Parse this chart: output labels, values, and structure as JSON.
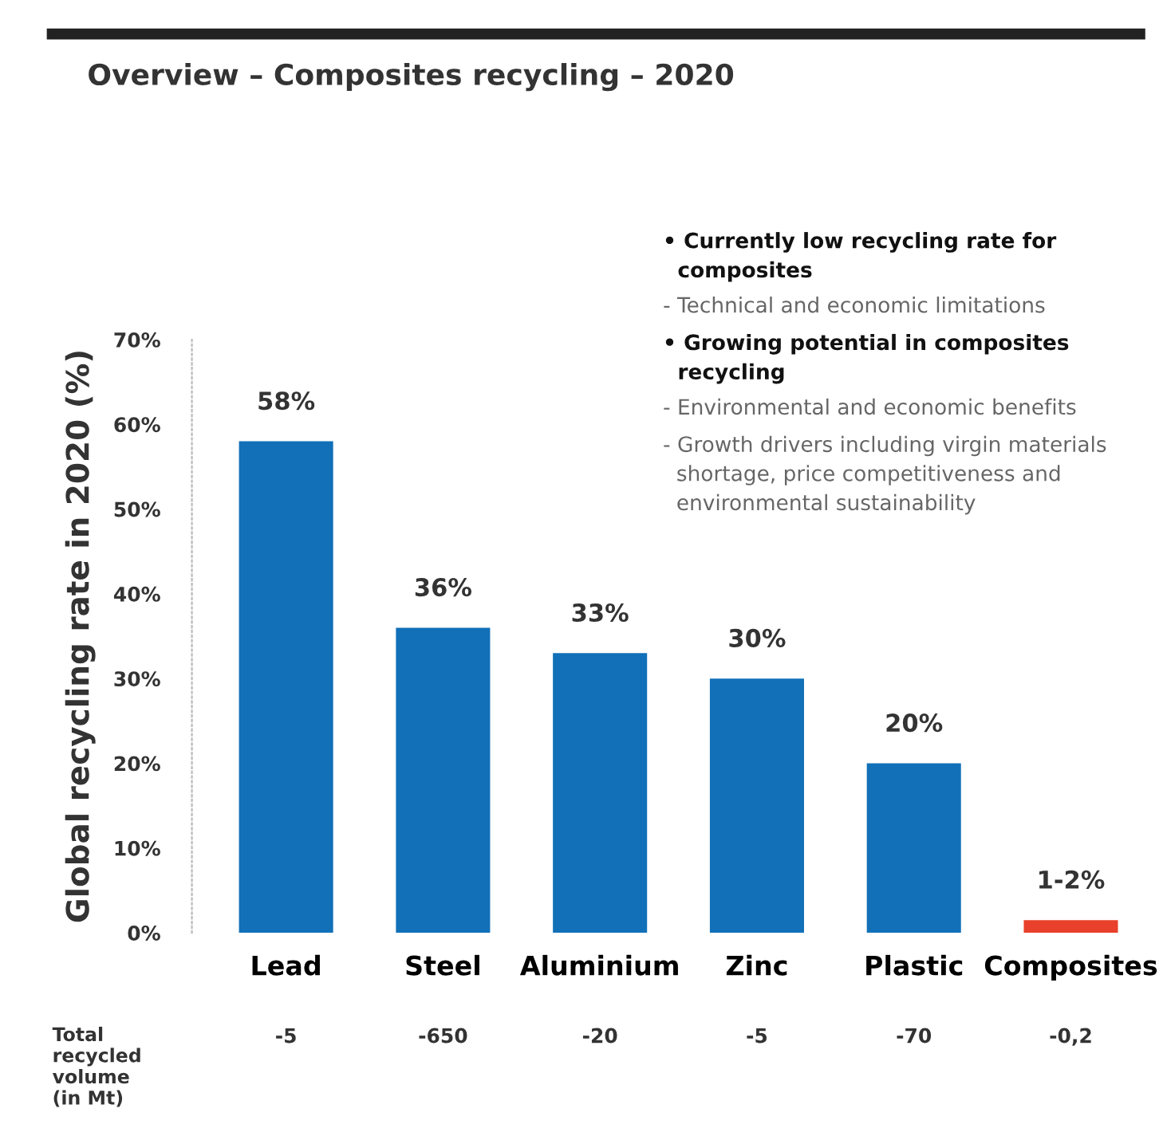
{
  "chart_data": {
    "type": "bar",
    "title": "Overview – Composites recycling – 2020",
    "ylabel": "Global recycling rate in 2020 (%)",
    "categories": [
      "Lead",
      "Steel",
      "Aluminium",
      "Zinc",
      "Plastic",
      "Composites"
    ],
    "values": [
      58,
      36,
      33,
      30,
      20,
      1.5
    ],
    "colors": [
      "#1170b8",
      "#1170b8",
      "#1170b8",
      "#1170b8",
      "#1170b8",
      "#e8402a"
    ],
    "value_labels": [
      "58%",
      "36%",
      "33%",
      "30%",
      "20%",
      "1-2%"
    ],
    "ylim": [
      0,
      70
    ],
    "yticks": [
      {
        "value": 0,
        "label": "0%"
      },
      {
        "value": 10,
        "label": "10%"
      },
      {
        "value": 20,
        "label": "20%"
      },
      {
        "value": 30,
        "label": "30%"
      },
      {
        "value": 40,
        "label": "40%"
      },
      {
        "value": 50,
        "label": "50%"
      },
      {
        "value": 60,
        "label": "60%"
      },
      {
        "value": 70,
        "label": "70%"
      }
    ],
    "grid": false,
    "legend": false,
    "annotations": [
      "• Currently low recycling rate for\n  composites",
      "- Technical and economic limitations",
      "• Growing potential in composites\n  recycling",
      "- Environmental and economic benefits",
      "- Growth drivers including virgin materials\n  shortage, price competitiveness and\n  environmental sustainability",
      "Total\nrecycled\nvolume\n(in Mt)",
      "-5",
      "-650",
      "-20",
      "-5",
      "-70",
      "-0,2"
    ]
  }
}
